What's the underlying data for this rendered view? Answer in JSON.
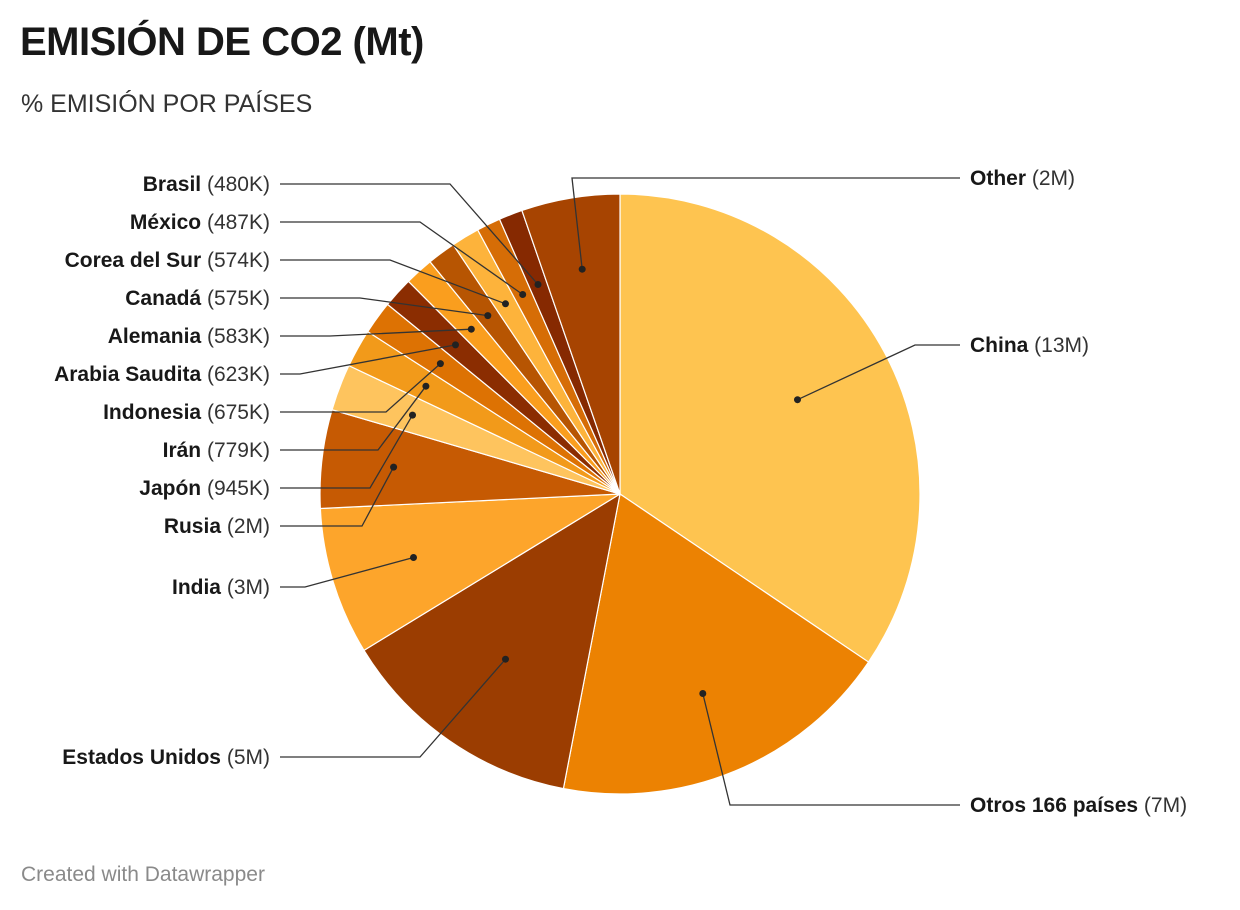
{
  "chart_data": {
    "type": "pie",
    "title": "EMISIÓN DE CO2 (Mt)",
    "subtitle": "% EMISIÓN POR PAÍSES",
    "start_angle_deg": 0,
    "direction": "clockwise",
    "slices": [
      {
        "name": "China",
        "value": 13000000,
        "value_label": "(13M)",
        "color": "#fec450"
      },
      {
        "name": "Otros 166 países",
        "value": 7000000,
        "value_label": "(7M)",
        "color": "#ec8202"
      },
      {
        "name": "Estados Unidos",
        "value": 5000000,
        "value_label": "(5M)",
        "color": "#9b3d01"
      },
      {
        "name": "India",
        "value": 3000000,
        "value_label": "(3M)",
        "color": "#fda52b"
      },
      {
        "name": "Rusia",
        "value": 2000000,
        "value_label": "(2M)",
        "color": "#c65a03"
      },
      {
        "name": "Japón",
        "value": 945000,
        "value_label": "(945K)",
        "color": "#fec45e"
      },
      {
        "name": "Irán",
        "value": 779000,
        "value_label": "(779K)",
        "color": "#f29a1a"
      },
      {
        "name": "Indonesia",
        "value": 675000,
        "value_label": "(675K)",
        "color": "#dd7203"
      },
      {
        "name": "Arabia Saudita",
        "value": 623000,
        "value_label": "(623K)",
        "color": "#8b2d01"
      },
      {
        "name": "Alemania",
        "value": 583000,
        "value_label": "(583K)",
        "color": "#fa9e1e"
      },
      {
        "name": "Canadá",
        "value": 575000,
        "value_label": "(575K)",
        "color": "#b75502"
      },
      {
        "name": "Corea del Sur",
        "value": 574000,
        "value_label": "(574K)",
        "color": "#fdb33b"
      },
      {
        "name": "México",
        "value": 487000,
        "value_label": "(487K)",
        "color": "#d66d06"
      },
      {
        "name": "Brasil",
        "value": 480000,
        "value_label": "(480K)",
        "color": "#862901"
      },
      {
        "name": "Other",
        "value": 2000000,
        "value_label": "(2M)",
        "color": "#a74401"
      }
    ]
  },
  "footer": {
    "credit": "Created with Datawrapper"
  }
}
